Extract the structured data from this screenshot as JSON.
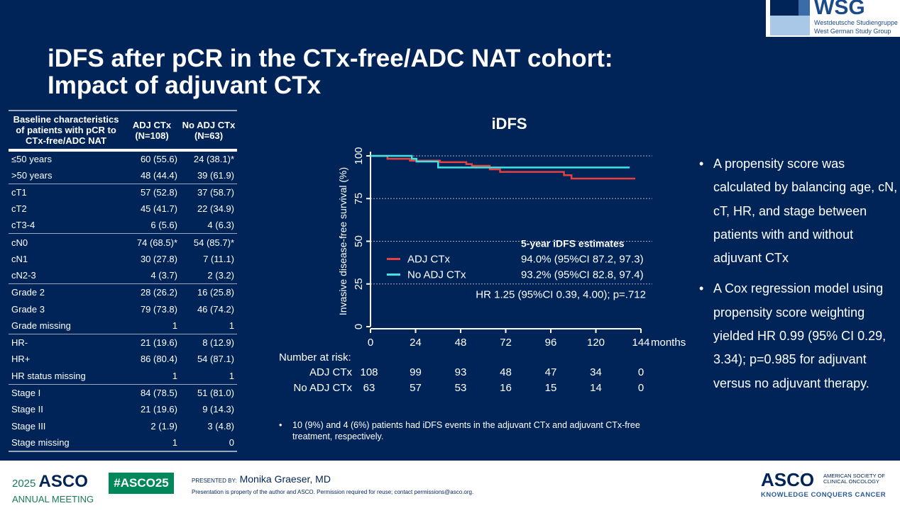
{
  "title_line1": "iDFS after pCR in the CTx-free/ADC NAT cohort:",
  "title_line2": "Impact of adjuvant CTx",
  "logo": {
    "name": "WSG",
    "line1": "Westdeutsche Studiengruppe",
    "line2": "West German Study Group"
  },
  "table": {
    "headers": [
      "Baseline characteristics of patients with pCR to CTx-free/ADC NAT",
      "ADJ CTx (N=108)",
      "No ADJ CTx (N=63)"
    ],
    "rows": [
      {
        "label": "≤50 years",
        "adj": "60 (55.6)",
        "noadj": "24 (38.1)*"
      },
      {
        "label": ">50 years",
        "adj": "48 (44.4)",
        "noadj": "39 (61.9)"
      },
      {
        "label": "cT1",
        "adj": "57 (52.8)",
        "noadj": "37 (58.7)"
      },
      {
        "label": "cT2",
        "adj": "45 (41.7)",
        "noadj": "22 (34.9)"
      },
      {
        "label": "cT3-4",
        "adj": "6 (5.6)",
        "noadj": "4 (6.3)"
      },
      {
        "label": "cN0",
        "adj": "74 (68.5)*",
        "noadj": "54 (85.7)*"
      },
      {
        "label": "cN1",
        "adj": "30 (27.8)",
        "noadj": "7 (11.1)"
      },
      {
        "label": "cN2-3",
        "adj": "4 (3.7)",
        "noadj": "2 (3.2)"
      },
      {
        "label": "Grade 2",
        "adj": "28 (26.2)",
        "noadj": "16 (25.8)"
      },
      {
        "label": "Grade 3",
        "adj": "79 (73.8)",
        "noadj": "46 (74.2)"
      },
      {
        "label": "Grade missing",
        "adj": "1",
        "noadj": "1"
      },
      {
        "label": "HR-",
        "adj": "21 (19.6)",
        "noadj": "8 (12.9)"
      },
      {
        "label": "HR+",
        "adj": "86 (80.4)",
        "noadj": "54 (87.1)"
      },
      {
        "label": "HR status missing",
        "adj": "1",
        "noadj": "1"
      },
      {
        "label": "Stage I",
        "adj": "84 (78.5)",
        "noadj": "51 (81.0)"
      },
      {
        "label": "Stage II",
        "adj": "21 (19.6)",
        "noadj": "9 (14.3)"
      },
      {
        "label": "Stage III",
        "adj": "2 (1.9)",
        "noadj": "3 (4.8)"
      },
      {
        "label": "Stage missing",
        "adj": "1",
        "noadj": "0"
      }
    ]
  },
  "chart_data": {
    "type": "line",
    "step": true,
    "title": "iDFS",
    "ylabel": "Invasive disease-free survival (%)",
    "xlabel": "months",
    "xlim": [
      0,
      144
    ],
    "ylim": [
      0,
      100
    ],
    "xticks": [
      0,
      24,
      48,
      72,
      96,
      120,
      144
    ],
    "yticks": [
      0,
      25,
      50,
      75,
      100
    ],
    "grid": "horizontal dotted",
    "series": [
      {
        "name": "ADJ CTx",
        "color": "#e8403f",
        "x": [
          0,
          9,
          21,
          37,
          51,
          54,
          63.5,
          69,
          103,
          107,
          141
        ],
        "y": [
          100,
          98.3,
          97.2,
          96.3,
          95.2,
          94.2,
          92.1,
          90.6,
          88.7,
          86.7,
          86.7
        ]
      },
      {
        "name": "No ADJ CTx",
        "color": "#3de6e6",
        "x": [
          0,
          22,
          24.5,
          36,
          138
        ],
        "y": [
          100,
          98.3,
          96.7,
          93.2,
          93.2
        ]
      }
    ],
    "estimates_title": "5-year iDFS estimates",
    "estimates": [
      "94.0% (95%CI 87.2, 97.3)",
      "93.2% (95%CI 82.8, 97.4)"
    ],
    "hr": "HR 1.25 (95%CI 0.39, 4.00); p=.712",
    "risk_title": "Number at risk:",
    "risk": [
      {
        "label": "ADJ CTx",
        "values": [
          "108",
          "99",
          "93",
          "48",
          "47",
          "34",
          "0"
        ]
      },
      {
        "label": "No ADJ CTx",
        "values": [
          "63",
          "57",
          "53",
          "16",
          "15",
          "14",
          "0"
        ]
      }
    ]
  },
  "bullets": [
    "A propensity score was calculated by balancing age, cN, cT, HR, and stage between patients with and without adjuvant CTx",
    "A Cox regression model using propensity score weighting yielded HR 0.99 (95% CI 0.29, 3.34); p=0.985 for adjuvant versus no adjuvant therapy."
  ],
  "footnote": "10 (9%) and 4 (6%) patients had iDFS events in the adjuvant CTx and adjuvant CTx-free treatment, respectively.",
  "footer": {
    "year": "2025",
    "asco": "ASCO",
    "meeting": "ANNUAL MEETING",
    "hashtag": "#ASCO25",
    "presented_by": "PRESENTED BY:",
    "presenter": "Monika Graeser, MD",
    "permission": "Presentation is property of the author and ASCO. Permission required for reuse; contact permissions@asco.org.",
    "society": "AMERICAN SOCIETY OF CLINICAL ONCOLOGY",
    "slogan": "KNOWLEDGE CONQUERS CANCER"
  }
}
